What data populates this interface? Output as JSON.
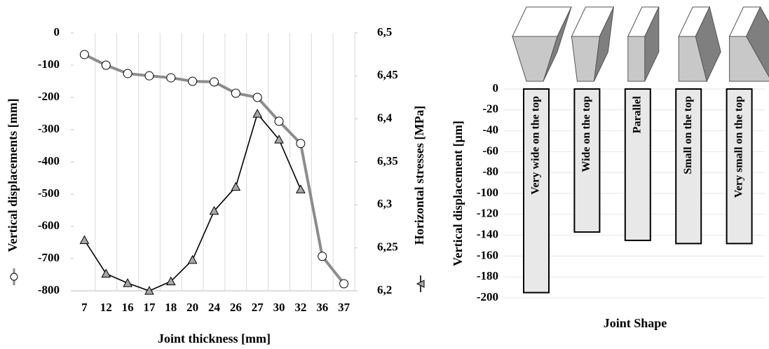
{
  "chart_data": [
    {
      "type": "line",
      "categories": [
        7,
        12,
        16,
        17,
        18,
        20,
        24,
        26,
        27,
        30,
        32,
        36,
        37
      ],
      "xlabel": "Joint thickness [mm]",
      "ylim": [
        -800,
        0
      ],
      "yticks": [
        0,
        -100,
        -200,
        -300,
        -400,
        -500,
        -600,
        -700,
        -800
      ],
      "y2lim": [
        6.2,
        6.5
      ],
      "y2ticks": [
        {
          "value": 6.5,
          "label": "6,5"
        },
        {
          "value": 6.45,
          "label": "6,45"
        },
        {
          "value": 6.4,
          "label": "6,4"
        },
        {
          "value": 6.35,
          "label": "6,35"
        },
        {
          "value": 6.3,
          "label": "6,3"
        },
        {
          "value": 6.25,
          "label": "6,25"
        },
        {
          "value": 6.2,
          "label": "6,2"
        }
      ],
      "grid": true,
      "series": [
        {
          "name": "Vertical displacements [mm]",
          "color": "#8c8c8c",
          "marker": "circle",
          "values": [
            -67,
            -100,
            -126,
            -133,
            -139,
            -150,
            -152,
            -187,
            -200,
            -274,
            -343,
            -693,
            -778
          ]
        },
        {
          "name": "Horizontal stresses [MPa]",
          "color": "#000000",
          "marker": "triangle",
          "axis": "y2",
          "values": [
            6.259,
            6.22,
            6.209,
            6.2,
            6.211,
            6.236,
            6.293,
            6.321,
            6.406,
            6.376,
            6.318,
            null,
            null
          ]
        }
      ]
    },
    {
      "type": "bar",
      "categories": [
        "Very wide  on the top",
        "Wide  on the top",
        "Parallel",
        "Small  on the top",
        "Very small  on the top"
      ],
      "values": [
        -195,
        -137,
        -145,
        -148,
        -148
      ],
      "color": "#e8e8e8",
      "xlabel": "Joint Shape",
      "ylabel": "Vertical displacement [µm]",
      "ylim": [
        -200,
        0
      ],
      "yticks": [
        0,
        -20,
        -40,
        -60,
        -80,
        -100,
        -120,
        -140,
        -160,
        -180,
        -200
      ],
      "grid": true
    }
  ]
}
